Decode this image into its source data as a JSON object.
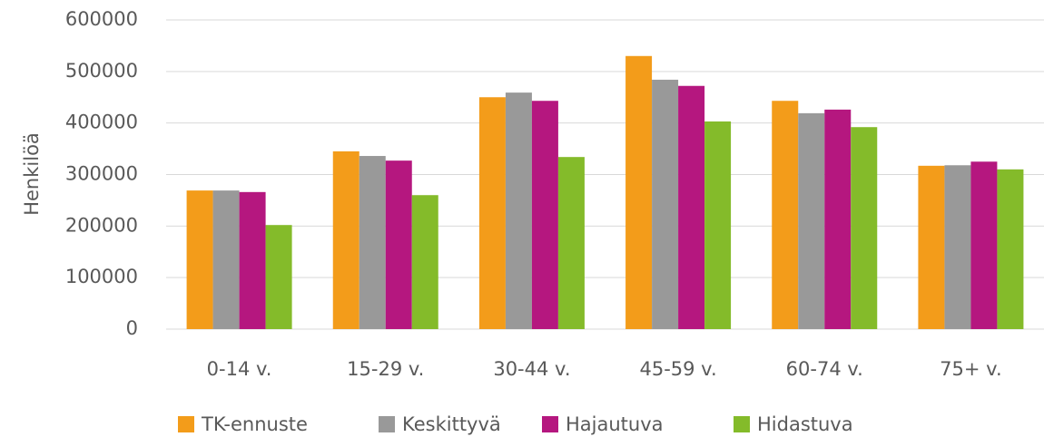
{
  "chart_data": {
    "type": "bar",
    "y_label": "Henkilöä",
    "categories": [
      "0-14 v.",
      "15-29 v.",
      "30-44 v.",
      "45-59 v.",
      "60-74 v.",
      "75+ v."
    ],
    "series": [
      {
        "name": "TK-ennuste",
        "color": "#f39c1a",
        "values": [
          269000,
          345000,
          450000,
          530000,
          443000,
          317000
        ]
      },
      {
        "name": "Keskittyvä",
        "color": "#999999",
        "values": [
          269000,
          336000,
          459000,
          484000,
          419000,
          318000
        ]
      },
      {
        "name": "Hajautuva",
        "color": "#b5177f",
        "values": [
          266000,
          327000,
          443000,
          472000,
          426000,
          325000
        ]
      },
      {
        "name": "Hidastuva",
        "color": "#84bb2a",
        "values": [
          202000,
          260000,
          334000,
          403000,
          392000,
          310000
        ]
      }
    ],
    "ylim": [
      0,
      600000
    ],
    "yticks": [
      0,
      100000,
      200000,
      300000,
      400000,
      500000,
      600000
    ],
    "grid": true,
    "legend": "bottom"
  }
}
